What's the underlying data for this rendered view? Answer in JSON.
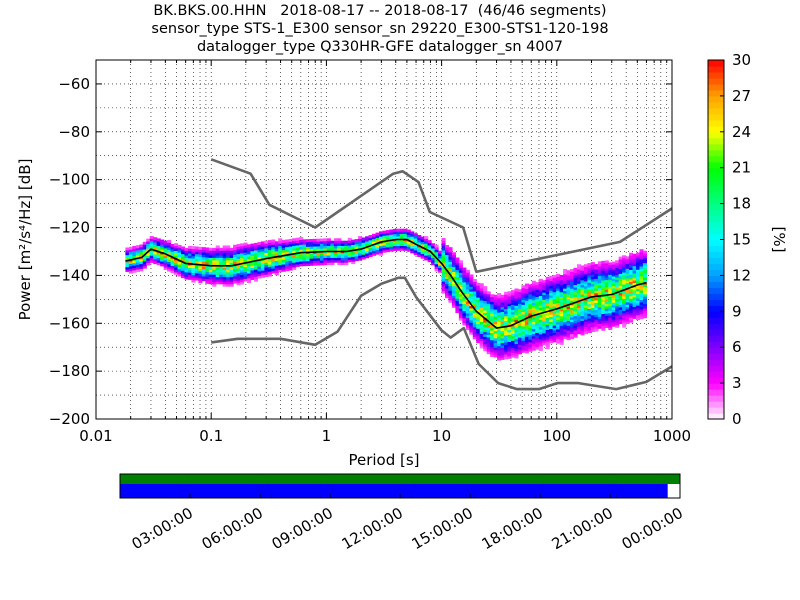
{
  "title": {
    "line1": "BK.BKS.00.HHN   2018-08-17 -- 2018-08-17  (46/46 segments)",
    "line2": "sensor_type STS-1_E300 sensor_sn 29220_E300-STS1-120-198",
    "line3": "datalogger_type Q330HR-GFE datalogger_sn 4007"
  },
  "chart_data": [
    {
      "type": "heatmap",
      "xlabel": "Period [s]",
      "ylabel": "Power [m²/s⁴/Hz] [dB]",
      "xscale": "log",
      "xlim": [
        0.01,
        1000
      ],
      "ylim": [
        -200,
        -50
      ],
      "x_ticks": [
        "0.01",
        "0.1",
        "1",
        "10",
        "100",
        "1000"
      ],
      "y_ticks": [
        "−200",
        "−180",
        "−160",
        "−140",
        "−120",
        "−100",
        "−80",
        "−60"
      ],
      "grid": true,
      "colorbar": {
        "label": "[%]",
        "range": [
          0,
          30
        ],
        "ticks": [
          "0",
          "3",
          "6",
          "9",
          "12",
          "15",
          "18",
          "21",
          "24",
          "27",
          "30"
        ],
        "colormap": [
          "#ffffff",
          "#ff00ff",
          "#7f00ff",
          "#0000ff",
          "#00a0ff",
          "#00ffff",
          "#00ff80",
          "#00ff00",
          "#ffff00",
          "#ffa000",
          "#ff0000"
        ]
      },
      "series": [
        {
          "role": "nhnm",
          "color": "#666666",
          "points": [
            [
              0.1,
              -168
            ],
            [
              0.17,
              -166.5
            ],
            [
              0.4,
              -166.5
            ],
            [
              0.8,
              -169
            ],
            [
              1.25,
              -163.5
            ],
            [
              2,
              -148.5
            ],
            [
              3,
              -143.5
            ],
            [
              4.2,
              -141
            ],
            [
              4.8,
              -141
            ],
            [
              6,
              -149
            ],
            [
              10,
              -163
            ],
            [
              12,
              -166
            ],
            [
              15.6,
              -162
            ],
            [
              21,
              -177
            ],
            [
              31,
              -185
            ],
            [
              45,
              -187.5
            ],
            [
              70,
              -187.5
            ],
            [
              101,
              -185
            ],
            [
              154,
              -185
            ],
            [
              328,
              -187.5
            ],
            [
              600,
              -184.5
            ],
            [
              1000,
              -178
            ]
          ]
        },
        {
          "role": "nlnm",
          "color": "#666666",
          "points": [
            [
              0.1,
              -91.5
            ],
            [
              0.22,
              -97.5
            ],
            [
              0.32,
              -110.5
            ],
            [
              0.8,
              -120
            ],
            [
              3.8,
              -97.5
            ],
            [
              4.6,
              -96.5
            ],
            [
              6.3,
              -101
            ],
            [
              7.9,
              -113.5
            ],
            [
              15.4,
              -120
            ],
            [
              20,
              -138.5
            ],
            [
              354,
              -126
            ],
            [
              1000,
              -112
            ]
          ]
        },
        {
          "role": "mode",
          "color": "#000000",
          "points": [
            [
              0.018,
              -134
            ],
            [
              0.025,
              -132.5
            ],
            [
              0.03,
              -129
            ],
            [
              0.04,
              -131
            ],
            [
              0.06,
              -135
            ],
            [
              0.1,
              -136
            ],
            [
              0.15,
              -136
            ],
            [
              0.3,
              -133
            ],
            [
              0.6,
              -130.5
            ],
            [
              1,
              -130
            ],
            [
              1.5,
              -130
            ],
            [
              2,
              -129
            ],
            [
              3,
              -126
            ],
            [
              4,
              -125
            ],
            [
              5,
              -125
            ],
            [
              6,
              -127
            ],
            [
              8,
              -130
            ],
            [
              10,
              -135
            ],
            [
              12,
              -140
            ],
            [
              15,
              -147
            ],
            [
              20,
              -155
            ],
            [
              30,
              -162
            ],
            [
              40,
              -161
            ],
            [
              60,
              -157
            ],
            [
              100,
              -154
            ],
            [
              200,
              -149
            ],
            [
              300,
              -148
            ],
            [
              500,
              -144
            ],
            [
              600,
              -143
            ]
          ]
        }
      ]
    },
    {
      "type": "timeline",
      "x_ticks": [
        "03:00:00",
        "06:00:00",
        "09:00:00",
        "12:00:00",
        "15:00:00",
        "18:00:00",
        "21:00:00",
        "00:00:00"
      ],
      "top_bar_color": "#008000",
      "bottom_bar_color": "#0000ff",
      "coverage_fraction": 0.978
    }
  ]
}
